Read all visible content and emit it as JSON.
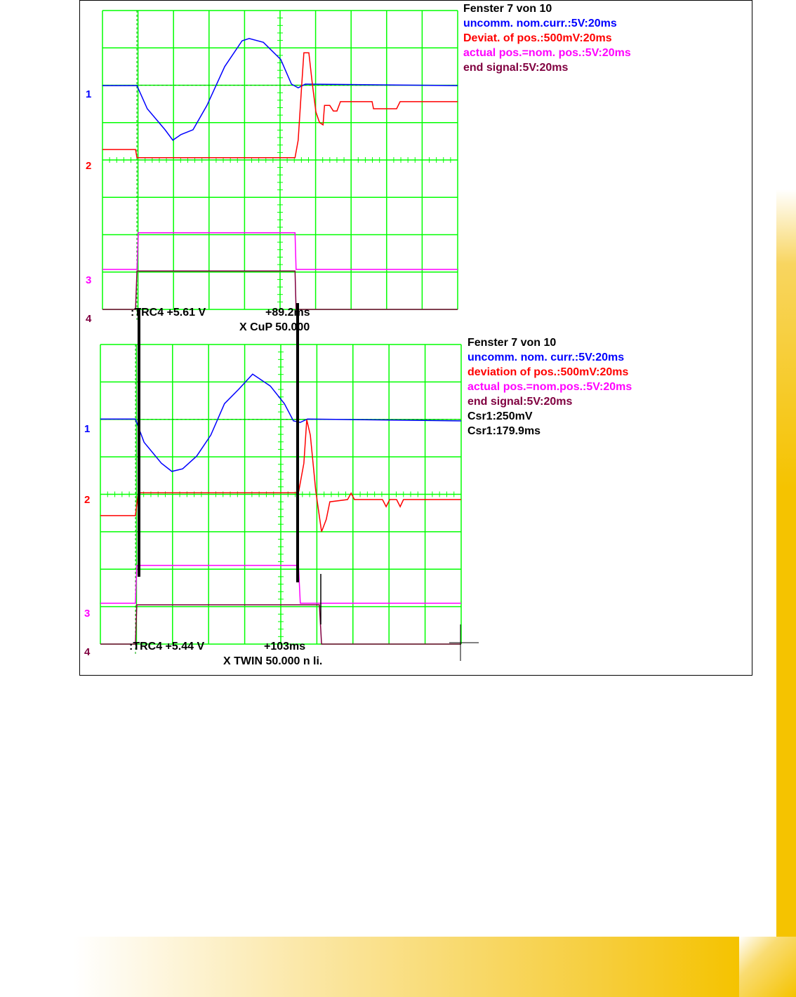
{
  "chart_data": [
    {
      "type": "line",
      "units": "divisions",
      "xlim": [
        0,
        10
      ],
      "ylim": [
        0,
        8
      ],
      "grid": true,
      "legend": {
        "title": "Fenster 7 von 10",
        "entries": [
          {
            "text": "uncomm. nom.curr.:5V:20ms",
            "color": "#0000ff"
          },
          {
            "text": "Deviat. of pos.:500mV:20ms",
            "color": "#ff0000"
          },
          {
            "text": "actual pos.=nom. pos.:5V:20ms",
            "color": "#ff00ff"
          },
          {
            "text": "end signal:5V:20ms",
            "color": "#800040"
          }
        ]
      },
      "channel_labels": [
        "1",
        "2",
        "3",
        "4"
      ],
      "readouts": {
        "trc": ":TRC4 +5.61 V",
        "time": "+89.2ms",
        "cursor": "X CuP 50.000"
      },
      "series": [
        {
          "color": "#0000ff",
          "x": [
            0,
            0.97,
            1.26,
            1.76,
            1.98,
            2.21,
            2.55,
            2.94,
            3.44,
            3.93,
            4.13,
            4.53,
            5.02,
            5.32,
            5.51,
            5.71,
            10
          ],
          "y": [
            5.99,
            5.99,
            5.37,
            4.81,
            4.53,
            4.68,
            4.81,
            5.46,
            6.5,
            7.19,
            7.25,
            7.15,
            6.69,
            6.03,
            5.93,
            6.03,
            5.99
          ]
        },
        {
          "color": "#ff0000",
          "x": [
            0,
            0.93,
            0.97,
            5.42,
            5.51,
            5.61,
            5.67,
            5.81,
            5.91,
            6.01,
            6.11,
            6.21,
            6.25,
            6.4,
            6.5,
            6.6,
            6.7,
            7.59,
            7.63,
            8.28,
            8.38,
            10
          ],
          "y": [
            4.28,
            4.28,
            4.06,
            4.06,
            4.53,
            6.03,
            6.87,
            6.87,
            6.03,
            5.28,
            5.0,
            4.94,
            5.46,
            5.46,
            5.31,
            5.31,
            5.56,
            5.56,
            5.37,
            5.37,
            5.56,
            5.56
          ]
        },
        {
          "color": "#ff00ff",
          "x": [
            0,
            0.97,
            1.01,
            5.42,
            5.45,
            10
          ],
          "y": [
            1.07,
            1.07,
            2.05,
            2.05,
            1.07,
            1.07
          ]
        },
        {
          "color": "#800040",
          "x": [
            0,
            0.93,
            0.97,
            5.42,
            5.45,
            10
          ],
          "y": [
            0,
            0,
            1.03,
            1.03,
            0,
            0
          ]
        }
      ]
    },
    {
      "type": "line",
      "units": "divisions",
      "xlim": [
        0,
        10
      ],
      "ylim": [
        0,
        8
      ],
      "grid": true,
      "legend": {
        "title": "Fenster 7 von 10",
        "entries": [
          {
            "text": "uncomm. nom. curr.:5V:20ms",
            "color": "#0000ff"
          },
          {
            "text": "deviation of pos.:500mV:20ms",
            "color": "#ff0000"
          },
          {
            "text": "actual pos.=nom.pos.:5V:20ms",
            "color": "#ff00ff"
          },
          {
            "text": "end signal:5V:20ms",
            "color": "#800040"
          },
          {
            "text": "Csr1:250mV",
            "color": "#000000"
          },
          {
            "text": "Csr1:179.9ms",
            "color": "#000000"
          }
        ]
      },
      "channel_labels": [
        "1",
        "2",
        "3",
        "4"
      ],
      "readouts": {
        "trc": ":TRC4 +5.44 V",
        "time": "+103ms",
        "cursor": "X TWIN 50.000 n li."
      },
      "series": [
        {
          "color": "#0000ff",
          "x": [
            0,
            0.97,
            1.21,
            1.69,
            1.98,
            2.28,
            2.67,
            3.06,
            3.44,
            3.83,
            4.22,
            4.71,
            5.1,
            5.35,
            5.54,
            5.74,
            10
          ],
          "y": [
            6.01,
            6.01,
            5.39,
            4.83,
            4.61,
            4.68,
            5.02,
            5.58,
            6.42,
            6.8,
            7.21,
            6.89,
            6.42,
            5.96,
            5.92,
            6.01,
            5.96
          ]
        },
        {
          "color": "#ff0000",
          "x": [
            0,
            0.97,
            1.05,
            5.49,
            5.64,
            5.72,
            5.82,
            5.97,
            6.13,
            6.26,
            6.36,
            6.85,
            6.95,
            7.04,
            7.82,
            7.92,
            8.02,
            8.21,
            8.31,
            8.4,
            10
          ],
          "y": [
            3.43,
            3.43,
            4.04,
            4.04,
            4.83,
            5.99,
            5.58,
            4.08,
            3.0,
            3.33,
            3.8,
            3.86,
            4.03,
            3.86,
            3.86,
            3.67,
            3.86,
            3.86,
            3.67,
            3.86,
            3.86
          ]
        },
        {
          "color": "#ff00ff",
          "x": [
            0,
            0.97,
            1.01,
            5.49,
            5.54,
            10
          ],
          "y": [
            1.09,
            1.09,
            2.1,
            2.1,
            1.09,
            1.09
          ]
        },
        {
          "color": "#800040",
          "x": [
            0,
            0.97,
            1.01,
            6.07,
            6.13,
            10
          ],
          "y": [
            0,
            0,
            1.05,
            1.05,
            0,
            0
          ]
        }
      ]
    }
  ]
}
